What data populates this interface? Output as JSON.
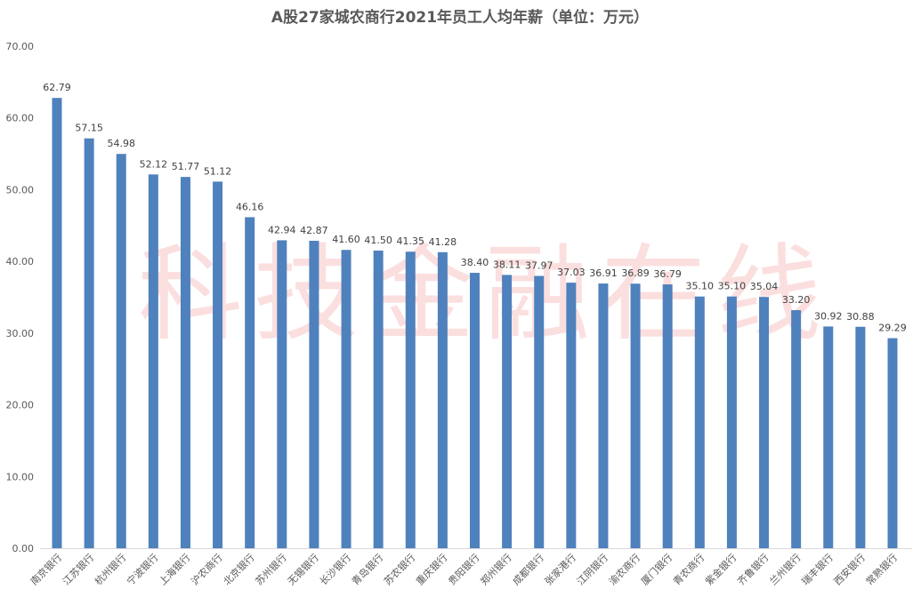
{
  "chart_data": {
    "type": "bar",
    "title": "A股27家城农商行2021年员工人均年薪（单位：万元）",
    "xlabel": "",
    "ylabel": "",
    "ylim": [
      0,
      70
    ],
    "yticks": [
      "0.00",
      "10.00",
      "20.00",
      "30.00",
      "40.00",
      "50.00",
      "60.00",
      "70.00"
    ],
    "grid": false,
    "bar_color": "#4f81bd",
    "categories": [
      "南京银行",
      "江苏银行",
      "杭州银行",
      "宁波银行",
      "上海银行",
      "沪农商行",
      "北京银行",
      "苏州银行",
      "无锡银行",
      "长沙银行",
      "青岛银行",
      "苏农银行",
      "重庆银行",
      "贵阳银行",
      "郑州银行",
      "成都银行",
      "张家港行",
      "江阴银行",
      "渝农商行",
      "厦门银行",
      "青农商行",
      "紫金银行",
      "齐鲁银行",
      "兰州银行",
      "瑞丰银行",
      "西安银行",
      "常熟银行"
    ],
    "values": [
      62.79,
      57.15,
      54.98,
      52.12,
      51.77,
      51.12,
      46.16,
      42.94,
      42.87,
      41.6,
      41.5,
      41.35,
      41.28,
      38.4,
      38.11,
      37.97,
      37.03,
      36.91,
      36.89,
      36.79,
      35.1,
      35.1,
      35.04,
      33.2,
      30.92,
      30.88,
      29.29
    ],
    "data_labels": [
      "62.79",
      "57.15",
      "54.98",
      "52.12",
      "51.77",
      "51.12",
      "46.16",
      "42.94",
      "42.87",
      "41.60",
      "41.50",
      "41.35",
      "41.28",
      "38.40",
      "38.11",
      "37.97",
      "37.03",
      "36.91",
      "36.89",
      "36.79",
      "35.10",
      "35.10",
      "35.04",
      "33.20",
      "30.92",
      "30.88",
      "29.29"
    ]
  },
  "watermark": "科技金融在线"
}
